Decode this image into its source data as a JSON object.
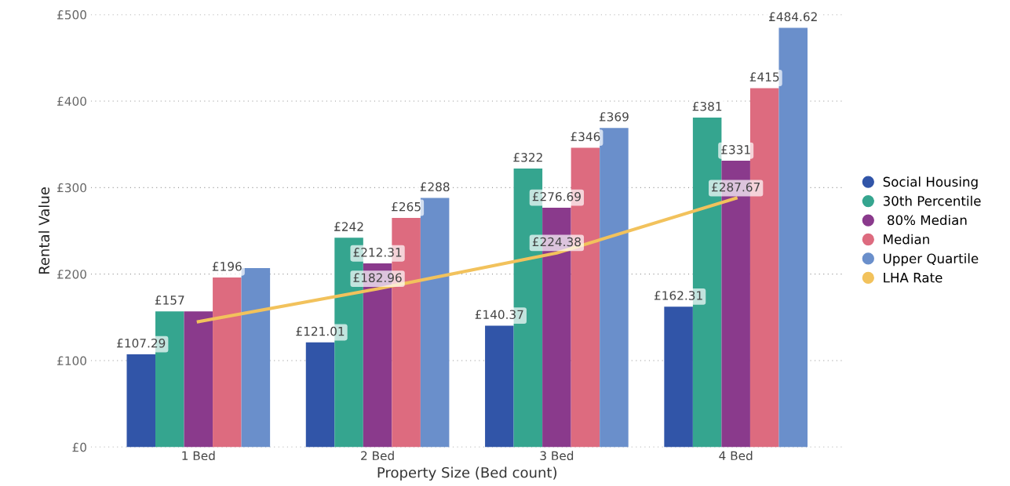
{
  "chart_data": {
    "type": "bar",
    "xlabel": "Property Size (Bed count)",
    "ylabel": "Rental Value",
    "categories": [
      "1 Bed",
      "2 Bed",
      "3 Bed",
      "4 Bed"
    ],
    "ylim": [
      0,
      500
    ],
    "yticks": [
      {
        "value": 0,
        "label": "£0"
      },
      {
        "value": 100,
        "label": "£100"
      },
      {
        "value": 200,
        "label": "£200"
      },
      {
        "value": 300,
        "label": "£300"
      },
      {
        "value": 400,
        "label": "£400"
      },
      {
        "value": 500,
        "label": "£500"
      }
    ],
    "grid": "y",
    "legend": "right",
    "series": [
      {
        "name": "Social Housing",
        "color": "#3155a8",
        "values": [
          107.29,
          121.01,
          140.37,
          162.31
        ],
        "value_labels": [
          "£107.29",
          "£121.01",
          "£140.37",
          "£162.31"
        ]
      },
      {
        "name": "30th Percentile",
        "color": "#35a58f",
        "values": [
          157,
          242,
          322,
          381
        ],
        "value_labels": [
          "£157",
          "£242",
          "£322",
          "£381"
        ]
      },
      {
        "name": " 80% Median",
        "color": "#8a3a8c",
        "values": [
          157,
          212.31,
          276.69,
          331
        ],
        "value_labels": [
          null,
          "£212.31",
          "£276.69",
          "£331"
        ]
      },
      {
        "name": "Median",
        "color": "#dd6b7f",
        "values": [
          196,
          265,
          346,
          415
        ],
        "value_labels": [
          "£196",
          "£265",
          "£346",
          "£415"
        ]
      },
      {
        "name": "Upper Quartile",
        "color": "#6a8fcb",
        "values": [
          207,
          288,
          369,
          484.62
        ],
        "value_labels": [
          null,
          "£288",
          "£369",
          "£484.62"
        ]
      },
      {
        "name": "LHA Rate",
        "type": "line",
        "color": "#f2c25c",
        "values": [
          145,
          182.96,
          224.38,
          287.67
        ],
        "value_labels": [
          null,
          "£182.96",
          "£224.38",
          "£287.67"
        ]
      }
    ]
  }
}
